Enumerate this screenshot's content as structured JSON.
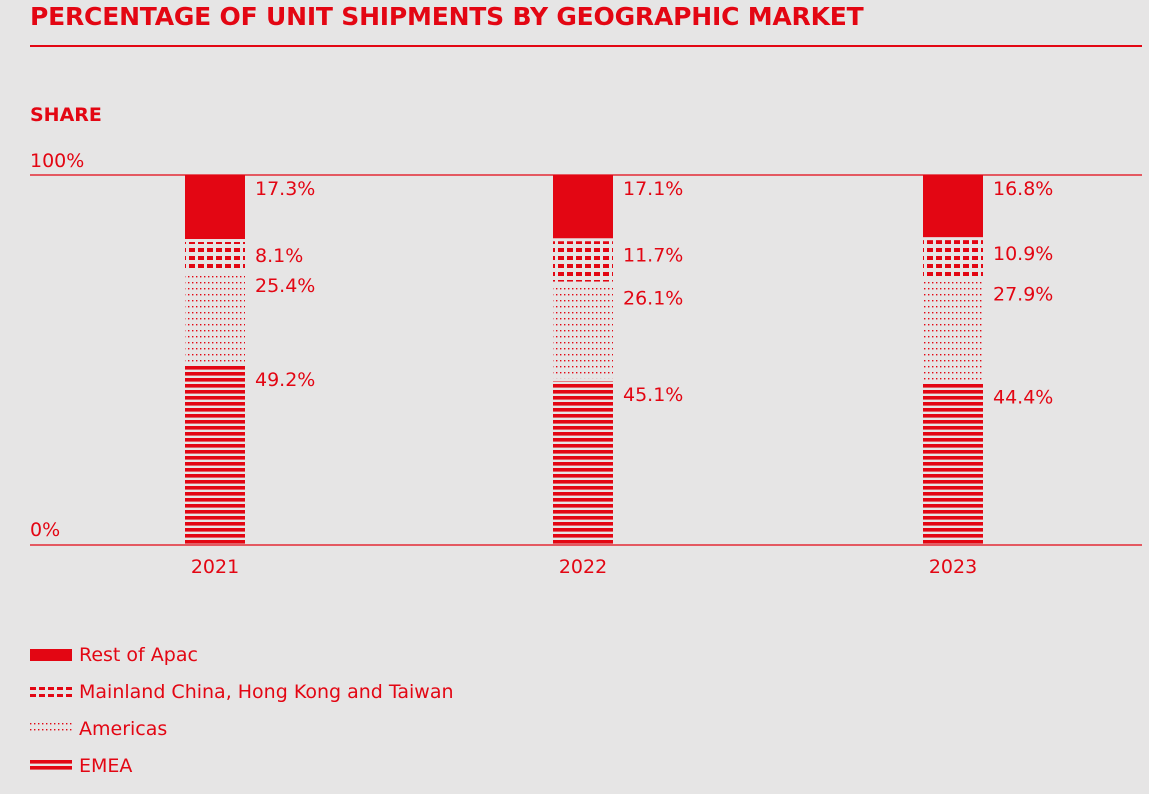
{
  "header": {
    "title": "PERCENTAGE OF UNIT SHIPMENTS BY GEOGRAPHIC MARKET",
    "axis_caption": "SHARE"
  },
  "colors": {
    "accent": "#e30613",
    "background": "#e6e5e5"
  },
  "legend": [
    {
      "label": "Rest of Apac",
      "pattern": "solid"
    },
    {
      "label": "Mainland China, Hong Kong and Taiwan",
      "pattern": "dashed"
    },
    {
      "label": "Americas",
      "pattern": "dotted"
    },
    {
      "label": "EMEA",
      "pattern": "striped"
    }
  ],
  "chart_data": {
    "type": "bar",
    "stacked": true,
    "title": "PERCENTAGE OF UNIT SHIPMENTS BY GEOGRAPHIC MARKET",
    "ylabel": "SHARE",
    "ylim": [
      0,
      100
    ],
    "y_tick_labels": [
      "0%",
      "100%"
    ],
    "categories": [
      "2021",
      "2022",
      "2023"
    ],
    "series": [
      {
        "name": "EMEA",
        "pattern": "striped",
        "values": [
          49.2,
          45.1,
          44.4
        ],
        "labels": [
          "49.2%",
          "45.1%",
          "44.4%"
        ]
      },
      {
        "name": "Americas",
        "pattern": "dotted",
        "values": [
          25.4,
          26.1,
          27.9
        ],
        "labels": [
          "25.4%",
          "26.1%",
          "27.9%"
        ]
      },
      {
        "name": "Mainland China, Hong Kong and Taiwan",
        "pattern": "dashed",
        "values": [
          8.1,
          11.7,
          10.9
        ],
        "labels": [
          "8.1%",
          "11.7%",
          "10.9%"
        ]
      },
      {
        "name": "Rest of Apac",
        "pattern": "solid",
        "values": [
          17.3,
          17.1,
          16.8
        ],
        "labels": [
          "17.3%",
          "17.1%",
          "16.8%"
        ]
      }
    ]
  }
}
